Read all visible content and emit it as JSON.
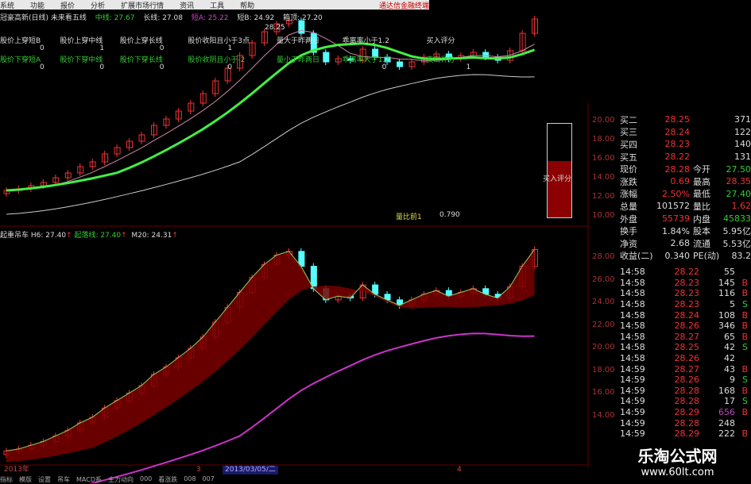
{
  "menu": {
    "items": [
      "系统",
      "功能",
      "报价",
      "分析",
      "扩展市场行情",
      "资讯",
      "工具",
      "帮助"
    ],
    "brand": "通达信金融终端"
  },
  "main_header": {
    "title": "冠豪高新(日线) 未来看五线",
    "mid_label": "中线: 27.67",
    "long_label": "长线: 27.08",
    "shortA_label": "短A: 25.22",
    "shortB_label": "短B: 24.92",
    "top_label": "箱顶: 27.20"
  },
  "signals": [
    {
      "label": "股价上穿短B",
      "value": "0"
    },
    {
      "label": "股价上穿中线",
      "value": "1"
    },
    {
      "label": "股价上穿长线",
      "value": "0"
    },
    {
      "label": "股价收阳且小于3点",
      "value": "1"
    },
    {
      "label": "量大于昨两日",
      "value": ""
    },
    {
      "label": "乖离率小于1.2",
      "value": ""
    },
    {
      "label": "买入评分",
      "value": ""
    }
  ],
  "signals2": [
    {
      "label": "股价下穿短A",
      "value": "0"
    },
    {
      "label": "股价下穿中线",
      "value": "0"
    },
    {
      "label": "股价下穿长线",
      "value": "0"
    },
    {
      "label": "股价收阴且小于-2",
      "value": "0"
    },
    {
      "label": "量小于昨两日",
      "value": ""
    },
    {
      "label": "乖离率大于1.2",
      "value": "0"
    },
    {
      "label": "卖出评分",
      "value": "1"
    }
  ],
  "peak_label": "28.25",
  "ratio": {
    "label": "量比前1",
    "value": "0.790"
  },
  "sub_header": {
    "title": "起重吊车",
    "h6": "H6: 27.40",
    "line": "起落线: 27.40",
    "m20": "M20: 24.31"
  },
  "score": {
    "label": "买入评分",
    "fill_fraction": 0.6,
    "color": "#8b0000"
  },
  "axis_top": [
    "20.00",
    "18.00",
    "16.00",
    "14.00",
    "12.00",
    "10.00"
  ],
  "axis_bottom": [
    "28.00",
    "26.00",
    "24.00",
    "22.00",
    "20.00",
    "18.00",
    "16.00",
    "14.00"
  ],
  "quote": {
    "bids": [
      {
        "l": "买二",
        "p": "28.25",
        "v": "371"
      },
      {
        "l": "买三",
        "p": "28.24",
        "v": "122"
      },
      {
        "l": "买四",
        "p": "28.23",
        "v": "140"
      },
      {
        "l": "买五",
        "p": "28.22",
        "v": "131"
      }
    ],
    "stats": [
      {
        "l": "现价",
        "v": "28.28",
        "l2": "今开",
        "v2": "27.50",
        "c": "#e33",
        "c2": "#3c3"
      },
      {
        "l": "涨跌",
        "v": "0.69",
        "l2": "最高",
        "v2": "28.35",
        "c": "#e33",
        "c2": "#e33"
      },
      {
        "l": "涨幅",
        "v": "2.50%",
        "l2": "最低",
        "v2": "27.40",
        "c": "#e33",
        "c2": "#3c3"
      },
      {
        "l": "总量",
        "v": "101572",
        "l2": "量比",
        "v2": "1.62",
        "c": "#ddd",
        "c2": "#e33"
      },
      {
        "l": "外盘",
        "v": "55739",
        "l2": "内盘",
        "v2": "45833",
        "c": "#e33",
        "c2": "#3c3"
      },
      {
        "l": "换手",
        "v": "1.84%",
        "l2": "股本",
        "v2": "5.95亿",
        "c": "#ddd",
        "c2": "#ddd"
      },
      {
        "l": "净资",
        "v": "2.68",
        "l2": "流通",
        "v2": "5.53亿",
        "c": "#ddd",
        "c2": "#ddd"
      },
      {
        "l": "收益(二)",
        "v": "0.340",
        "l2": "PE(动)",
        "v2": "83.2",
        "c": "#ddd",
        "c2": "#ddd"
      }
    ]
  },
  "ticks": [
    {
      "t": "14:58",
      "p": "28.22",
      "v": "55",
      "bs": ""
    },
    {
      "t": "14:58",
      "p": "28.23",
      "v": "145",
      "bs": "B"
    },
    {
      "t": "14:58",
      "p": "28.23",
      "v": "116",
      "bs": "B"
    },
    {
      "t": "14:58",
      "p": "28.23",
      "v": "5",
      "bs": "S"
    },
    {
      "t": "14:58",
      "p": "28.24",
      "v": "108",
      "bs": "B"
    },
    {
      "t": "14:58",
      "p": "28.26",
      "v": "346",
      "bs": "B"
    },
    {
      "t": "14:58",
      "p": "28.27",
      "v": "65",
      "bs": "B"
    },
    {
      "t": "14:58",
      "p": "28.25",
      "v": "42",
      "bs": "S"
    },
    {
      "t": "14:58",
      "p": "28.26",
      "v": "42",
      "bs": ""
    },
    {
      "t": "14:59",
      "p": "28.27",
      "v": "43",
      "bs": "B"
    },
    {
      "t": "14:59",
      "p": "28.26",
      "v": "9",
      "bs": "S"
    },
    {
      "t": "14:59",
      "p": "28.28",
      "v": "168",
      "bs": "B"
    },
    {
      "t": "14:59",
      "p": "28.28",
      "v": "17",
      "bs": "S"
    },
    {
      "t": "14:59",
      "p": "28.29",
      "v": "656",
      "bs": "B"
    },
    {
      "t": "14:59",
      "p": "28.28",
      "v": "248",
      "bs": ""
    },
    {
      "t": "14:59",
      "p": "28.29",
      "v": "222",
      "bs": "B"
    }
  ],
  "date_axis": {
    "year": "2013年",
    "m3": "3",
    "cursor": "2013/03/05/二",
    "m4": "4"
  },
  "bottom_tabs": [
    "指标",
    "模版",
    "设置",
    "吊车",
    "MACD系",
    "主力动向",
    "000",
    "看涨跌",
    "008",
    "007"
  ],
  "watermark": {
    "title": "乐淘公式网",
    "url": "www.60lt.com"
  }
}
